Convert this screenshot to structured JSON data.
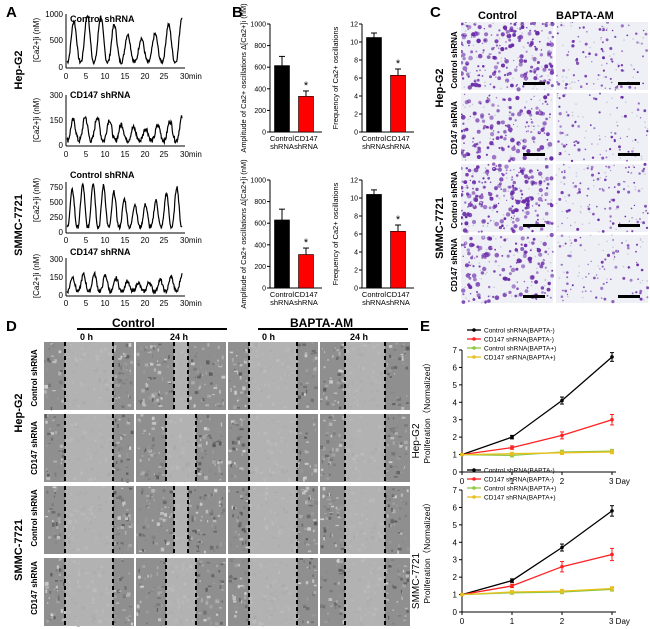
{
  "panel_letters": [
    "A",
    "B",
    "C",
    "D",
    "E"
  ],
  "panelA": {
    "traces": [
      {
        "label": "Control  shRNA",
        "cell_line": "Hep-G2",
        "yticks": [
          "1000",
          "500",
          "0"
        ],
        "ylabel": "[Ca2+]i (nM)"
      },
      {
        "label": "CD147 shRNA",
        "cell_line": "Hep-G2",
        "yticks": [
          "300",
          "150",
          "0"
        ],
        "ylabel": "[Ca2+]i (nM)"
      },
      {
        "label": "Control  shRNA",
        "cell_line": "SMMC-7721",
        "yticks": [
          "750",
          "500",
          "250",
          "0"
        ],
        "ylabel": "[Ca2+]i (nM)"
      },
      {
        "label": "CD147 shRNA",
        "cell_line": "SMMC-7721",
        "yticks": [
          "300",
          "150",
          "0"
        ],
        "ylabel": "[Ca2+]i (nM)"
      }
    ],
    "xticks": [
      "0",
      "5",
      "10",
      "15",
      "20",
      "25",
      "30min"
    ],
    "cell_lines": [
      "Hep-G2",
      "SMMC-7721"
    ]
  },
  "chart_data": [
    {
      "type": "bar",
      "panel": "B",
      "cell_line": "Hep-G2",
      "categories": [
        "Control shRNA",
        "CD147 shRNA"
      ],
      "values": [
        615,
        330
      ],
      "errors": [
        85,
        50
      ],
      "colors": [
        "#000000",
        "#ff0000"
      ],
      "ylabel": "Amplitude of Ca2+ oscillations Δ[Ca2+]i (nM)",
      "ylim": [
        0,
        1000
      ],
      "yticks": [
        0,
        200,
        400,
        600,
        800,
        1000
      ],
      "annotation": "*"
    },
    {
      "type": "bar",
      "panel": "B",
      "cell_line": "Hep-G2",
      "categories": [
        "Control shRNA",
        "CD147 shRNA"
      ],
      "values": [
        10.5,
        6.3
      ],
      "errors": [
        0.5,
        0.7
      ],
      "colors": [
        "#000000",
        "#ff0000"
      ],
      "ylabel": "Frequency of Ca2+ oscillations",
      "ylim": [
        0,
        12
      ],
      "yticks": [
        0,
        2,
        4,
        6,
        8,
        10,
        12
      ],
      "annotation": "*"
    },
    {
      "type": "bar",
      "panel": "B",
      "cell_line": "SMMC-7721",
      "categories": [
        "Control shRNA",
        "CD147 shRNA"
      ],
      "values": [
        630,
        310
      ],
      "errors": [
        100,
        60
      ],
      "colors": [
        "#000000",
        "#ff0000"
      ],
      "ylabel": "Amplitude of Ca2+ oscillations Δ[Ca2+]i (nM)",
      "ylim": [
        0,
        1000
      ],
      "yticks": [
        0,
        200,
        400,
        600,
        800,
        1000
      ],
      "annotation": "*"
    },
    {
      "type": "bar",
      "panel": "B",
      "cell_line": "SMMC-7721",
      "categories": [
        "Control shRNA",
        "CD147 shRNA"
      ],
      "values": [
        10.4,
        6.3
      ],
      "errors": [
        0.5,
        0.7
      ],
      "colors": [
        "#000000",
        "#ff0000"
      ],
      "ylabel": "Frequency of Ca2+ oscillations",
      "ylim": [
        0,
        12
      ],
      "yticks": [
        0,
        2,
        4,
        6,
        8,
        10,
        12
      ],
      "annotation": "*"
    },
    {
      "type": "line",
      "panel": "E",
      "cell_line": "Hep-G2",
      "x": [
        0,
        1,
        2,
        3
      ],
      "xticks": [
        "0",
        "1",
        "2",
        "3 Day"
      ],
      "ylabel": "Proliferation（Normalized）",
      "ylim": [
        0,
        7
      ],
      "yticks": [
        0,
        1,
        2,
        3,
        4,
        5,
        6,
        7
      ],
      "series": [
        {
          "name": "Control shRNA(BAPTA-)",
          "color": "#000000",
          "values": [
            1.0,
            2.0,
            4.1,
            6.6
          ],
          "errors": [
            0.05,
            0.1,
            0.2,
            0.25
          ]
        },
        {
          "name": "CD147  shRNA(BAPTA-)",
          "color": "#ff2020",
          "values": [
            1.0,
            1.4,
            2.1,
            3.0
          ],
          "errors": [
            0.05,
            0.1,
            0.2,
            0.3
          ]
        },
        {
          "name": "Control shRNA(BAPTA+)",
          "color": "#8dc63f",
          "values": [
            1.0,
            0.95,
            1.15,
            1.2
          ],
          "errors": [
            0.05,
            0.08,
            0.1,
            0.1
          ]
        },
        {
          "name": "CD147   shRNA(BAPTA+)",
          "color": "#e8c020",
          "values": [
            1.0,
            1.05,
            1.1,
            1.15
          ],
          "errors": [
            0.05,
            0.08,
            0.1,
            0.1
          ]
        }
      ]
    },
    {
      "type": "line",
      "panel": "E",
      "cell_line": "SMMC-7721",
      "x": [
        0,
        1,
        2,
        3
      ],
      "xticks": [
        "0",
        "1",
        "2",
        "3 Day"
      ],
      "ylabel": "Proliferation（Normalized）",
      "ylim": [
        0,
        7
      ],
      "yticks": [
        0,
        1,
        2,
        3,
        4,
        5,
        6,
        7
      ],
      "series": [
        {
          "name": "Control shRNA(BAPTA-)",
          "color": "#000000",
          "values": [
            1.0,
            1.8,
            3.7,
            5.8
          ],
          "errors": [
            0.05,
            0.1,
            0.2,
            0.3
          ]
        },
        {
          "name": "CD147  shRNA(BAPTA-)",
          "color": "#ff2020",
          "values": [
            1.0,
            1.5,
            2.6,
            3.3
          ],
          "errors": [
            0.05,
            0.1,
            0.3,
            0.35
          ]
        },
        {
          "name": "Control shRNA(BAPTA+)",
          "color": "#8dc63f",
          "values": [
            1.0,
            1.1,
            1.15,
            1.3
          ],
          "errors": [
            0.05,
            0.08,
            0.1,
            0.1
          ]
        },
        {
          "name": "CD147  shRNA(BAPTA+)",
          "color": "#e8c020",
          "values": [
            1.0,
            1.15,
            1.2,
            1.35
          ],
          "errors": [
            0.05,
            0.08,
            0.1,
            0.1
          ]
        }
      ]
    }
  ],
  "panelC": {
    "col_headers": [
      "Control",
      "BAPTA-AM"
    ],
    "cell_lines": [
      "Hep-G2",
      "SMMC-7721"
    ],
    "row_labels": [
      "Control  shRNA",
      "CD147 shRNA",
      "Control  shRNA",
      "CD147 shRNA"
    ],
    "stain_color": "#6a2aa8"
  },
  "panelD": {
    "col_headers": [
      "Control",
      "BAPTA-AM"
    ],
    "time_labels": [
      "0 h",
      "24 h",
      "0 h",
      "24 h"
    ],
    "cell_lines": [
      "Hep-G2",
      "SMMC-7721"
    ],
    "row_labels": [
      "Control  shRNA",
      "CD147 shRNA",
      "Control  shRNA",
      "CD147 shRNA"
    ]
  }
}
